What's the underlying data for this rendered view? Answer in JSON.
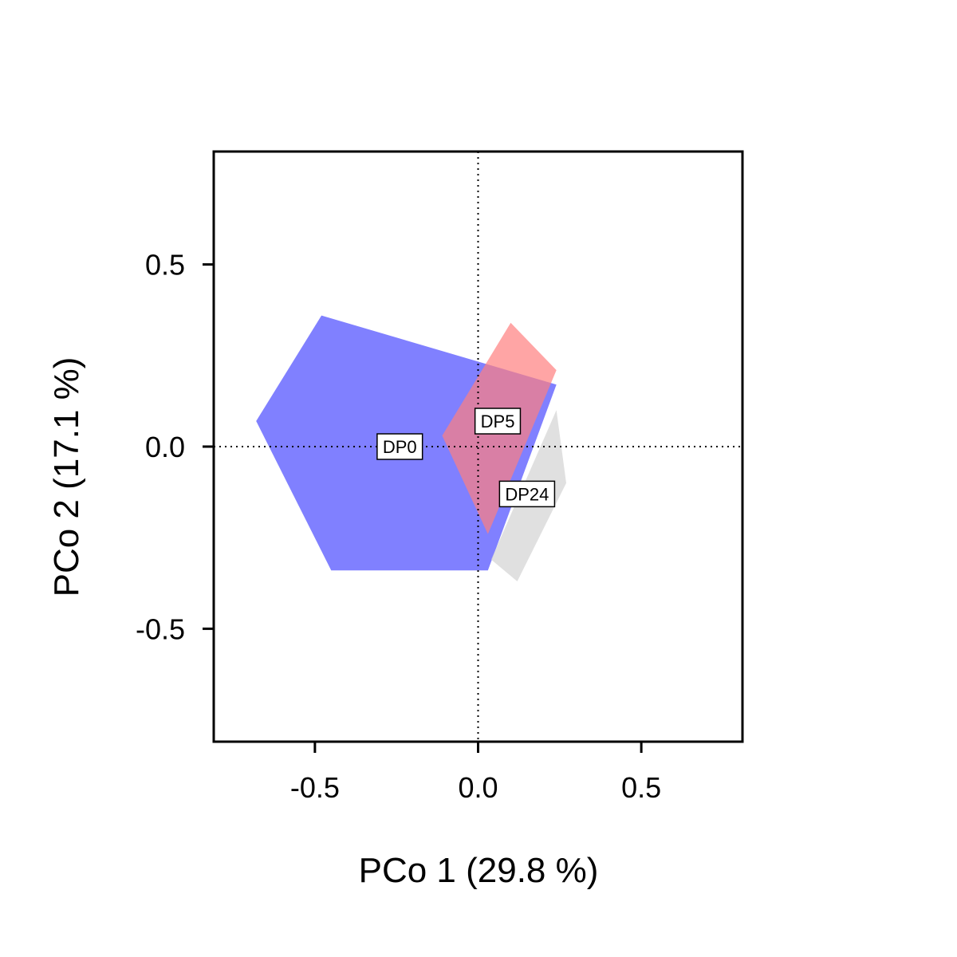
{
  "chart_data": {
    "type": "scatter",
    "title": "",
    "xlabel": "PCo 1 (29.8 %)",
    "ylabel": "PCo 2 (17.1 %)",
    "xlim": [
      -0.81,
      0.81
    ],
    "ylim": [
      -0.81,
      0.81
    ],
    "xticks": [
      -0.5,
      0.0,
      0.5
    ],
    "yticks": [
      -0.5,
      0.0,
      0.5
    ],
    "xtick_labels": [
      "-0.5",
      "0.0",
      "0.5"
    ],
    "ytick_labels": [
      "-0.5",
      "0.0",
      "0.5"
    ],
    "reference_lines": {
      "x": 0,
      "y": 0,
      "style": "dotted"
    },
    "grid": false,
    "legend": "none",
    "series": [
      {
        "name": "DP0",
        "color": "#8080ff",
        "label_position": [
          -0.24,
          0.0
        ],
        "hull": [
          [
            -0.48,
            0.36
          ],
          [
            0.24,
            0.17
          ],
          [
            0.03,
            -0.34
          ],
          [
            -0.45,
            -0.34
          ],
          [
            -0.68,
            0.07
          ]
        ]
      },
      {
        "name": "DP5",
        "color": "#ff7f7f",
        "label_position": [
          0.06,
          0.07
        ],
        "hull": [
          [
            0.1,
            0.34
          ],
          [
            0.24,
            0.21
          ],
          [
            0.03,
            -0.24
          ],
          [
            -0.11,
            0.03
          ]
        ]
      },
      {
        "name": "DP24",
        "color": "#d3d3d3",
        "label_position": [
          0.15,
          -0.13
        ],
        "hull": [
          [
            0.24,
            0.1
          ],
          [
            0.27,
            -0.1
          ],
          [
            0.12,
            -0.37
          ],
          [
            0.04,
            -0.31
          ]
        ]
      }
    ]
  }
}
